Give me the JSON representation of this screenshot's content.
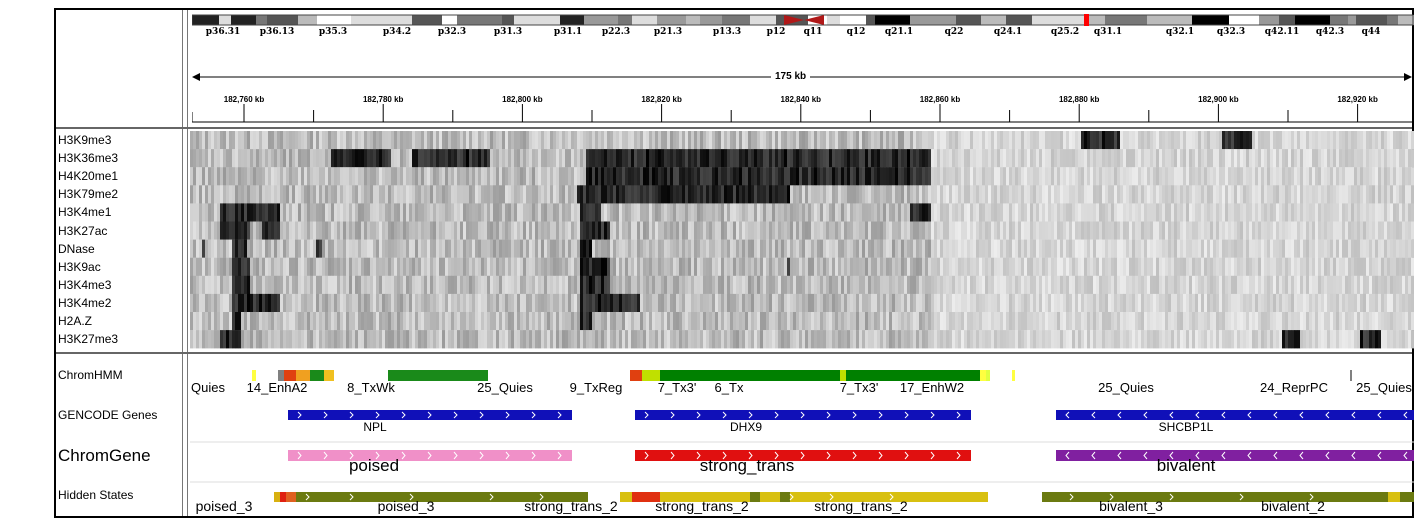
{
  "ideogram": {
    "bands": [
      "p36.31",
      "p36.13",
      "p35.3",
      "p34.2",
      "p32.3",
      "p31.3",
      "p31.1",
      "p22.3",
      "p21.3",
      "p13.3",
      "p12",
      "q11",
      "q12",
      "q21.1",
      "q22",
      "q24.1",
      "q25.2",
      "q31.1",
      "q32.1",
      "q32.3",
      "q42.11",
      "q42.3",
      "q44"
    ]
  },
  "ruler": {
    "span_label": "175 kb",
    "ticks": [
      "182,760 kb",
      "182,780 kb",
      "182,800 kb",
      "182,820 kb",
      "182,840 kb",
      "182,860 kb",
      "182,880 kb",
      "182,900 kb",
      "182,920 kb"
    ]
  },
  "heatmap": {
    "marks": [
      "H3K9me3",
      "H3K36me3",
      "H4K20me1",
      "H3K79me2",
      "H3K4me1",
      "H3K27ac",
      "DNase",
      "H3K9ac",
      "H3K4me3",
      "H3K4me2",
      "H2A.Z",
      "H3K27me3"
    ]
  },
  "tracks": {
    "chromhmm": {
      "label": "ChromHMM",
      "states": [
        "Quies",
        "14_EnhA2",
        "8_TxWk",
        "25_Quies",
        "9_TxReg",
        "7_Tx3'",
        "6_Tx",
        "7_Tx3'",
        "17_EnhW2",
        "25_Quies",
        "24_ReprPC",
        "25_Quies"
      ]
    },
    "gencode": {
      "label": "GENCODE Genes",
      "genes": [
        "NPL",
        "DHX9",
        "SHCBP1L"
      ]
    },
    "chromgene": {
      "label": "ChromGene",
      "states": [
        "poised",
        "strong_trans",
        "bivalent"
      ]
    },
    "hidden": {
      "label": "Hidden States",
      "states": [
        "poised_3",
        "poised_3",
        "strong_trans_2",
        "strong_trans_2",
        "strong_trans_2",
        "bivalent_3",
        "bivalent_2"
      ]
    }
  },
  "colors": {
    "gene_blue": "#1010b8",
    "chromgene_pink": "#f090c8",
    "chromgene_red": "#e01010",
    "chromgene_purple": "#8020a0",
    "txwk_green": "#1a8a1a",
    "hidden_olive": "#6b7a10",
    "hidden_yellow": "#d8c010",
    "centromere": "#b01818"
  }
}
